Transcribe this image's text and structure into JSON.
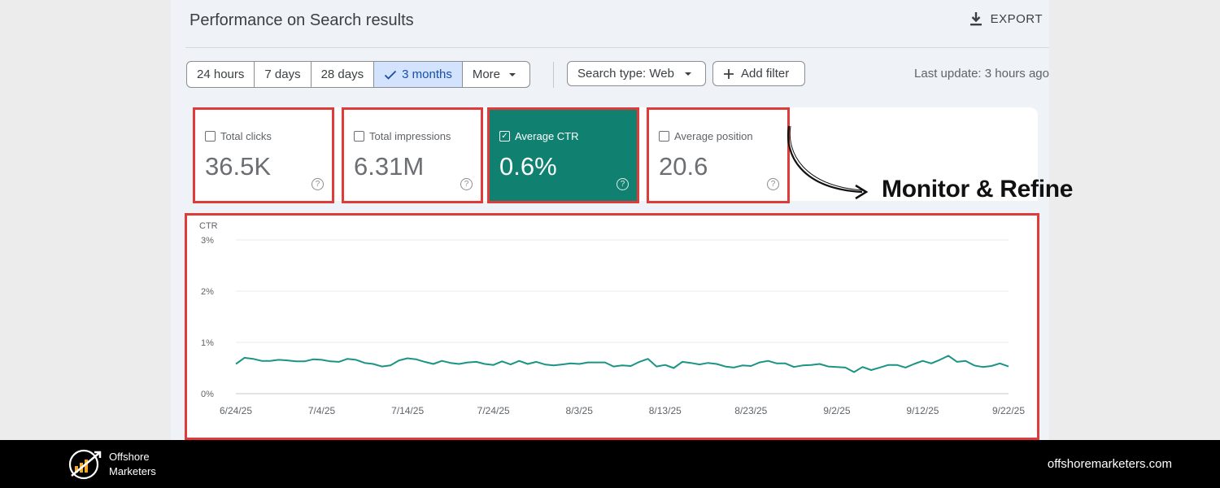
{
  "header": {
    "title": "Performance on Search results",
    "export_label": "EXPORT",
    "icon": "download-icon"
  },
  "date_ranges": [
    {
      "label": "24 hours",
      "selected": false
    },
    {
      "label": "7 days",
      "selected": false
    },
    {
      "label": "28 days",
      "selected": false
    },
    {
      "label": "3 months",
      "selected": true
    },
    {
      "label": "More",
      "selected": false
    }
  ],
  "filters": {
    "search_type_label": "Search type: Web",
    "add_filter_label": "Add filter"
  },
  "last_update": "Last update: 3 hours ago",
  "metrics": [
    {
      "label": "Total clicks",
      "value": "36.5K",
      "checked": false
    },
    {
      "label": "Total impressions",
      "value": "6.31M",
      "checked": false
    },
    {
      "label": "Average CTR",
      "value": "0.6%",
      "checked": true
    },
    {
      "label": "Average position",
      "value": "20.6",
      "checked": false
    }
  ],
  "annotation": "Monitor & Refine",
  "colors": {
    "accent": "#108171",
    "highlight_border": "#e03b3b",
    "selected_chip": "#d3e3fd",
    "line": "#1a9484"
  },
  "chart_data": {
    "type": "line",
    "ylabel": "CTR",
    "y_ticks": [
      "3%",
      "2%",
      "1%",
      "0%"
    ],
    "ylim": [
      0,
      3
    ],
    "x_ticks": [
      "6/24/25",
      "7/4/25",
      "7/14/25",
      "7/24/25",
      "8/3/25",
      "8/13/25",
      "8/23/25",
      "9/2/25",
      "9/12/25",
      "9/22/25"
    ],
    "grid": true,
    "series": [
      {
        "values": [
          0.58,
          0.7,
          0.68,
          0.64,
          0.64,
          0.66,
          0.65,
          0.63,
          0.63,
          0.67,
          0.66,
          0.63,
          0.62,
          0.68,
          0.66,
          0.6,
          0.58,
          0.53,
          0.55,
          0.65,
          0.69,
          0.67,
          0.62,
          0.58,
          0.64,
          0.6,
          0.58,
          0.61,
          0.62,
          0.58,
          0.56,
          0.63,
          0.57,
          0.64,
          0.58,
          0.62,
          0.57,
          0.55,
          0.57,
          0.59,
          0.58,
          0.61,
          0.61,
          0.61,
          0.53,
          0.55,
          0.54,
          0.62,
          0.68,
          0.53,
          0.56,
          0.5,
          0.62,
          0.6,
          0.57,
          0.6,
          0.58,
          0.53,
          0.51,
          0.55,
          0.54,
          0.61,
          0.64,
          0.59,
          0.59,
          0.52,
          0.55,
          0.56,
          0.58,
          0.53,
          0.52,
          0.51,
          0.42,
          0.52,
          0.46,
          0.51,
          0.56,
          0.56,
          0.51,
          0.58,
          0.64,
          0.59,
          0.66,
          0.74,
          0.62,
          0.64,
          0.55,
          0.52,
          0.54,
          0.59,
          0.53
        ]
      }
    ]
  },
  "footer": {
    "brand_line1": "Offshore",
    "brand_line2": "Marketers",
    "website": "offshoremarketers.com"
  }
}
